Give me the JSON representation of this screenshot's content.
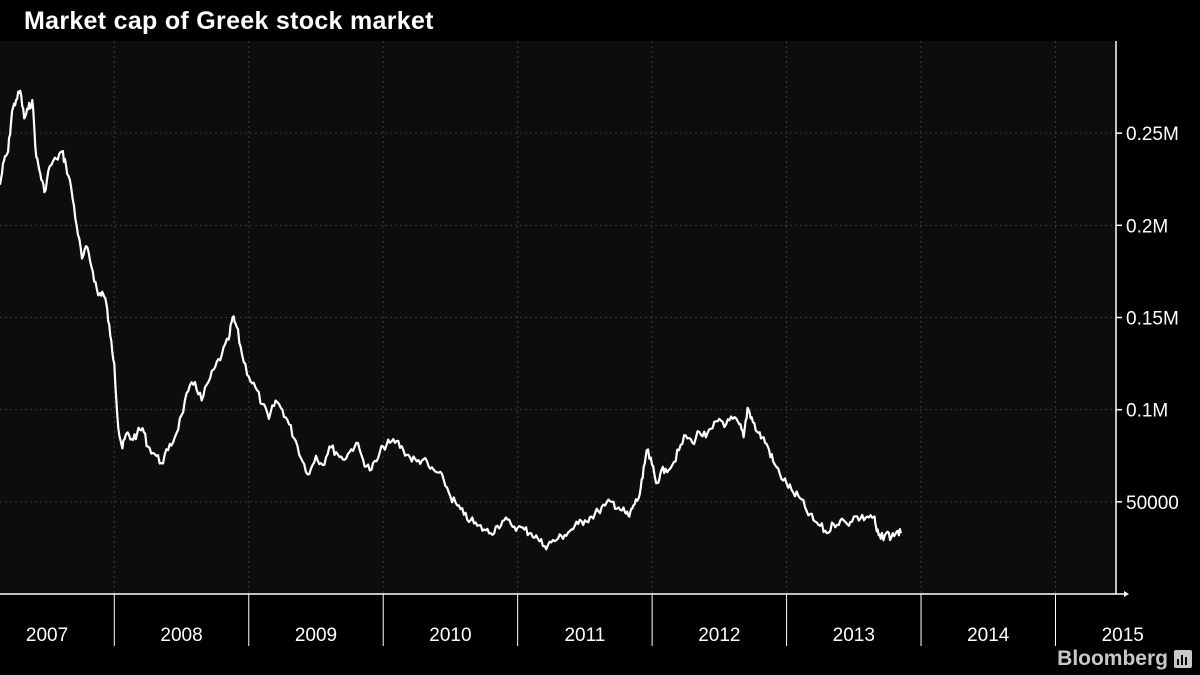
{
  "title": "Market cap of Greek stock market",
  "brand": "Bloomberg",
  "colors": {
    "background": "#000000",
    "plot_background": "#0d0d0d",
    "line": "#ffffff",
    "text": "#ffffff"
  },
  "chart_data": {
    "type": "line",
    "title": "Market cap of Greek stock market",
    "xlabel": "",
    "ylabel": "",
    "xlim": [
      2007.15,
      2015.45
    ],
    "ylim": [
      0,
      300000
    ],
    "grid": true,
    "legend": "none",
    "x_ticks": [
      {
        "value": 2007.5,
        "label": "2007"
      },
      {
        "value": 2008.5,
        "label": "2008"
      },
      {
        "value": 2009.5,
        "label": "2009"
      },
      {
        "value": 2010.5,
        "label": "2010"
      },
      {
        "value": 2011.5,
        "label": "2011"
      },
      {
        "value": 2012.5,
        "label": "2012"
      },
      {
        "value": 2013.5,
        "label": "2013"
      },
      {
        "value": 2014.5,
        "label": "2014"
      },
      {
        "value": 2015.5,
        "label": "2015"
      }
    ],
    "x_year_boundaries": [
      2008,
      2009,
      2010,
      2011,
      2012,
      2013,
      2014,
      2015
    ],
    "y_ticks": [
      {
        "value": 50000,
        "label": "50000"
      },
      {
        "value": 100000,
        "label": "0.1M"
      },
      {
        "value": 150000,
        "label": "0.15M"
      },
      {
        "value": 200000,
        "label": "0.2M"
      },
      {
        "value": 250000,
        "label": "0.25M"
      }
    ],
    "series": [
      {
        "points": [
          [
            2007.15,
            222000
          ],
          [
            2007.18,
            235000
          ],
          [
            2007.21,
            240000
          ],
          [
            2007.24,
            262000
          ],
          [
            2007.27,
            268000
          ],
          [
            2007.3,
            273000
          ],
          [
            2007.33,
            258000
          ],
          [
            2007.36,
            263000
          ],
          [
            2007.39,
            268000
          ],
          [
            2007.42,
            237000
          ],
          [
            2007.45,
            228000
          ],
          [
            2007.48,
            218000
          ],
          [
            2007.52,
            232000
          ],
          [
            2007.57,
            236000
          ],
          [
            2007.61,
            240000
          ],
          [
            2007.64,
            233000
          ],
          [
            2007.68,
            220000
          ],
          [
            2007.72,
            200000
          ],
          [
            2007.76,
            182000
          ],
          [
            2007.8,
            188000
          ],
          [
            2007.84,
            175000
          ],
          [
            2007.88,
            162000
          ],
          [
            2007.91,
            164000
          ],
          [
            2007.94,
            158000
          ],
          [
            2007.97,
            140000
          ],
          [
            2008.0,
            125000
          ],
          [
            2008.03,
            90000
          ],
          [
            2008.06,
            79000
          ],
          [
            2008.09,
            87000
          ],
          [
            2008.13,
            84000
          ],
          [
            2008.17,
            87000
          ],
          [
            2008.21,
            90000
          ],
          [
            2008.25,
            80000
          ],
          [
            2008.3,
            76000
          ],
          [
            2008.35,
            71000
          ],
          [
            2008.4,
            78000
          ],
          [
            2008.45,
            85000
          ],
          [
            2008.5,
            97000
          ],
          [
            2008.55,
            110000
          ],
          [
            2008.6,
            115000
          ],
          [
            2008.65,
            105000
          ],
          [
            2008.7,
            115000
          ],
          [
            2008.75,
            123000
          ],
          [
            2008.8,
            130000
          ],
          [
            2008.85,
            138000
          ],
          [
            2008.88,
            150000
          ],
          [
            2008.91,
            145000
          ],
          [
            2008.95,
            130000
          ],
          [
            2009.0,
            118000
          ],
          [
            2009.05,
            112000
          ],
          [
            2009.1,
            103000
          ],
          [
            2009.15,
            95000
          ],
          [
            2009.2,
            105000
          ],
          [
            2009.25,
            100000
          ],
          [
            2009.3,
            92000
          ],
          [
            2009.35,
            83000
          ],
          [
            2009.4,
            72000
          ],
          [
            2009.45,
            65000
          ],
          [
            2009.5,
            75000
          ],
          [
            2009.55,
            70000
          ],
          [
            2009.6,
            80000
          ],
          [
            2009.65,
            77000
          ],
          [
            2009.7,
            73000
          ],
          [
            2009.75,
            77000
          ],
          [
            2009.8,
            82000
          ],
          [
            2009.85,
            73000
          ],
          [
            2009.9,
            67000
          ],
          [
            2009.95,
            72000
          ],
          [
            2010.0,
            80000
          ],
          [
            2010.05,
            82000
          ],
          [
            2010.1,
            83000
          ],
          [
            2010.15,
            78000
          ],
          [
            2010.2,
            74000
          ],
          [
            2010.25,
            72000
          ],
          [
            2010.3,
            73000
          ],
          [
            2010.35,
            68000
          ],
          [
            2010.4,
            66000
          ],
          [
            2010.45,
            62000
          ],
          [
            2010.5,
            53000
          ],
          [
            2010.55,
            48000
          ],
          [
            2010.6,
            43000
          ],
          [
            2010.65,
            40000
          ],
          [
            2010.7,
            37000
          ],
          [
            2010.75,
            35000
          ],
          [
            2010.8,
            33000
          ],
          [
            2010.85,
            37000
          ],
          [
            2010.9,
            40000
          ],
          [
            2010.95,
            38000
          ],
          [
            2011.0,
            36000
          ],
          [
            2011.05,
            35000
          ],
          [
            2011.1,
            33000
          ],
          [
            2011.15,
            30000
          ],
          [
            2011.2,
            26000
          ],
          [
            2011.25,
            28000
          ],
          [
            2011.3,
            30000
          ],
          [
            2011.35,
            32000
          ],
          [
            2011.4,
            35000
          ],
          [
            2011.45,
            38000
          ],
          [
            2011.5,
            40000
          ],
          [
            2011.55,
            42000
          ],
          [
            2011.6,
            45000
          ],
          [
            2011.65,
            48000
          ],
          [
            2011.7,
            50000
          ],
          [
            2011.75,
            47000
          ],
          [
            2011.8,
            44000
          ],
          [
            2011.83,
            42000
          ],
          [
            2011.86,
            48000
          ],
          [
            2011.9,
            52000
          ],
          [
            2011.93,
            63000
          ],
          [
            2011.96,
            78000
          ],
          [
            2012.0,
            70000
          ],
          [
            2012.03,
            60000
          ],
          [
            2012.06,
            65000
          ],
          [
            2012.1,
            68000
          ],
          [
            2012.15,
            70000
          ],
          [
            2012.2,
            78000
          ],
          [
            2012.25,
            86000
          ],
          [
            2012.3,
            82000
          ],
          [
            2012.35,
            88000
          ],
          [
            2012.4,
            85000
          ],
          [
            2012.45,
            90000
          ],
          [
            2012.5,
            95000
          ],
          [
            2012.55,
            92000
          ],
          [
            2012.6,
            95000
          ],
          [
            2012.65,
            92000
          ],
          [
            2012.68,
            85000
          ],
          [
            2012.71,
            101000
          ],
          [
            2012.74,
            96000
          ],
          [
            2012.78,
            88000
          ],
          [
            2012.82,
            85000
          ],
          [
            2012.86,
            80000
          ],
          [
            2012.9,
            72000
          ],
          [
            2012.95,
            65000
          ],
          [
            2013.0,
            60000
          ],
          [
            2013.05,
            55000
          ],
          [
            2013.1,
            52000
          ],
          [
            2013.15,
            45000
          ],
          [
            2013.2,
            40000
          ],
          [
            2013.25,
            37000
          ],
          [
            2013.3,
            33000
          ],
          [
            2013.35,
            38000
          ],
          [
            2013.4,
            40000
          ],
          [
            2013.45,
            38000
          ],
          [
            2013.5,
            42000
          ],
          [
            2013.55,
            41000
          ],
          [
            2013.6,
            42000
          ],
          [
            2013.65,
            42000
          ],
          [
            2013.67,
            34000
          ],
          [
            2013.7,
            30000
          ],
          [
            2013.74,
            33000
          ],
          [
            2013.78,
            31000
          ],
          [
            2013.82,
            34000
          ],
          [
            2013.85,
            33000
          ]
        ]
      }
    ]
  }
}
